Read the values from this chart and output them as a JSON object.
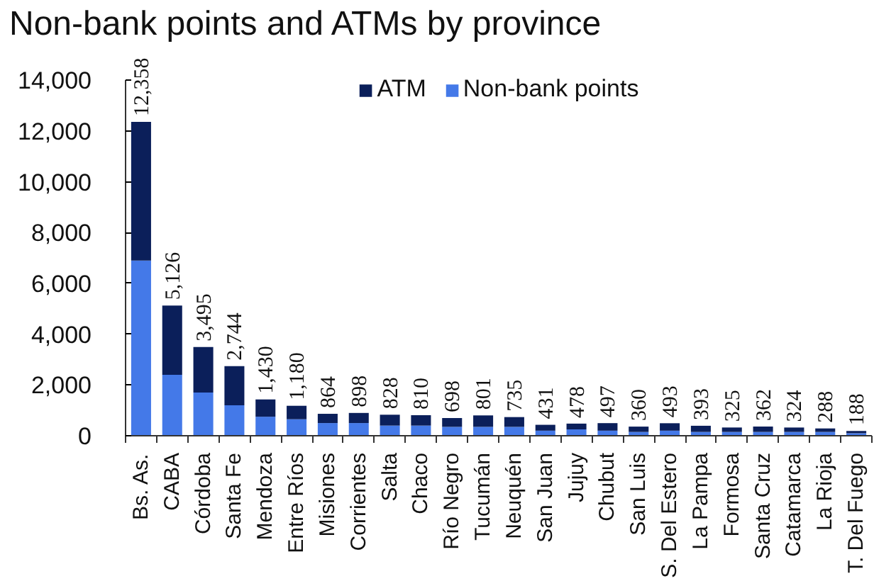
{
  "chart_data": {
    "type": "bar",
    "title": "Non-bank points and ATMs by province",
    "categories": [
      "Bs. As.",
      "CABA",
      "Córdoba",
      "Santa Fe",
      "Mendoza",
      "Entre Ríos",
      "Misiones",
      "Corrientes",
      "Salta",
      "Chaco",
      "Río Negro",
      "Tucumán",
      "Neuquén",
      "San Juan",
      "Jujuy",
      "Chubut",
      "San Luis",
      "S. Del Estero",
      "La Pampa",
      "Formosa",
      "Santa Cruz",
      "Catamarca",
      "La Rioja",
      "T. Del Fuego"
    ],
    "series": [
      {
        "name": "Non-bank points",
        "color": "#4479e8",
        "values": [
          6900,
          2400,
          1700,
          1200,
          750,
          650,
          500,
          500,
          400,
          400,
          350,
          350,
          350,
          200,
          250,
          200,
          150,
          200,
          150,
          150,
          150,
          150,
          150,
          100
        ]
      },
      {
        "name": "ATM",
        "color": "#0b1f5a",
        "values": [
          5458,
          2726,
          1795,
          1544,
          680,
          530,
          364,
          398,
          428,
          410,
          348,
          451,
          385,
          231,
          228,
          297,
          210,
          293,
          243,
          175,
          212,
          174,
          138,
          88
        ]
      }
    ],
    "stacked": true,
    "totals": [
      "12,358",
      "5,126",
      "3,495",
      "2,744",
      "1,430",
      "1,180",
      "864",
      "898",
      "828",
      "810",
      "698",
      "801",
      "735",
      "431",
      "478",
      "497",
      "360",
      "493",
      "393",
      "325",
      "362",
      "324",
      "288",
      "188"
    ],
    "ylim": [
      0,
      14000
    ],
    "yticks": [
      {
        "value": 0,
        "label": "0"
      },
      {
        "value": 2000,
        "label": "2,000"
      },
      {
        "value": 4000,
        "label": "4,000"
      },
      {
        "value": 6000,
        "label": "6,000"
      },
      {
        "value": 8000,
        "label": "8,000"
      },
      {
        "value": 10000,
        "label": "10,000"
      },
      {
        "value": 12000,
        "label": "12,000"
      },
      {
        "value": 14000,
        "label": "14,000"
      }
    ],
    "legend": "top"
  }
}
